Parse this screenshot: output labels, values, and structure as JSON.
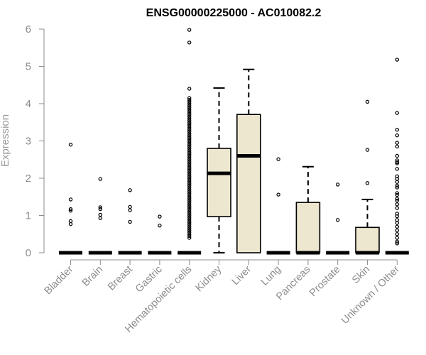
{
  "chart_data": {
    "type": "box",
    "title": "ENSG00000225000 - AC010082.2",
    "ylabel": "Expression",
    "xlabel": "",
    "ylim": [
      0,
      6
    ],
    "yticks": [
      0,
      1,
      2,
      3,
      4,
      5,
      6
    ],
    "box_fill": "#ede7cf",
    "grid": false,
    "categories": [
      "Bladder",
      "Brain",
      "Breast",
      "Gastric",
      "Hematopoietic cells",
      "Kidney",
      "Liver",
      "Lung",
      "Pancreas",
      "Prostate",
      "Skin",
      "Unknown / Other"
    ],
    "boxes": [
      {
        "name": "Bladder",
        "min": 0,
        "q1": 0,
        "median": 0,
        "q3": 0,
        "max": 0,
        "outliers": [
          2.9,
          1.43,
          1.17,
          1.13,
          0.85,
          0.77
        ]
      },
      {
        "name": "Brain",
        "min": 0,
        "q1": 0,
        "median": 0,
        "q3": 0,
        "max": 0,
        "outliers": [
          1.98,
          1.22,
          1.17,
          1.02,
          0.93
        ]
      },
      {
        "name": "Breast",
        "min": 0,
        "q1": 0,
        "median": 0,
        "q3": 0,
        "max": 0,
        "outliers": [
          1.68,
          1.23,
          1.14,
          0.83
        ]
      },
      {
        "name": "Gastric",
        "min": 0,
        "q1": 0,
        "median": 0,
        "q3": 0,
        "max": 0,
        "outliers": [
          0.97,
          0.73
        ]
      },
      {
        "name": "Hematopoietic cells",
        "min": 0,
        "q1": 0,
        "median": 0,
        "q3": 0,
        "max": 0,
        "outliers": [
          5.98,
          5.64,
          4.4,
          4.15,
          4.1,
          4.05,
          4.0,
          3.95,
          3.9,
          3.85,
          3.8,
          3.75,
          3.7,
          3.65,
          3.6,
          3.55,
          3.5,
          3.45,
          3.4,
          3.35,
          3.3,
          3.25,
          3.2,
          3.15,
          3.1,
          3.05,
          3.0,
          2.95,
          2.9,
          2.85,
          2.8,
          2.75,
          2.7,
          2.65,
          2.6,
          2.55,
          2.5,
          2.45,
          2.4,
          2.35,
          2.3,
          2.25,
          2.2,
          2.15,
          2.1,
          2.05,
          2.0,
          1.95,
          1.9,
          1.85,
          1.8,
          1.75,
          1.7,
          1.65,
          1.6,
          1.55,
          1.5,
          1.45,
          1.4,
          1.35,
          1.3,
          1.25,
          1.2,
          1.15,
          1.1,
          1.05,
          1.0,
          0.95,
          0.9,
          0.85,
          0.8,
          0.75,
          0.7,
          0.65,
          0.6,
          0.55,
          0.5,
          0.45,
          0.4
        ]
      },
      {
        "name": "Kidney",
        "min": 0,
        "q1": 0.97,
        "median": 2.13,
        "q3": 2.8,
        "max": 4.42,
        "outliers": []
      },
      {
        "name": "Liver",
        "min": 0,
        "q1": 0,
        "median": 2.6,
        "q3": 3.71,
        "max": 4.92,
        "outliers": []
      },
      {
        "name": "Lung",
        "min": 0,
        "q1": 0,
        "median": 0,
        "q3": 0,
        "max": 0,
        "outliers": [
          2.51,
          1.56
        ]
      },
      {
        "name": "Pancreas",
        "min": 0,
        "q1": 0,
        "median": 0,
        "q3": 1.35,
        "max": 2.31,
        "outliers": []
      },
      {
        "name": "Prostate",
        "min": 0,
        "q1": 0,
        "median": 0,
        "q3": 0,
        "max": 0,
        "outliers": [
          1.83,
          0.88
        ]
      },
      {
        "name": "Skin",
        "min": 0,
        "q1": 0,
        "median": 0,
        "q3": 0.68,
        "max": 1.43,
        "outliers": [
          4.05,
          2.76,
          1.87
        ]
      },
      {
        "name": "Unknown / Other",
        "min": 0,
        "q1": 0,
        "median": 0,
        "q3": 0,
        "max": 0,
        "outliers": [
          5.18,
          3.75,
          3.3,
          3.15,
          2.95,
          2.85,
          2.6,
          2.48,
          2.43,
          2.4,
          2.25,
          2.05,
          1.98,
          1.9,
          1.8,
          1.75,
          1.6,
          1.55,
          1.45,
          1.4,
          1.3,
          1.2,
          1.05,
          0.98,
          0.88,
          0.8,
          0.7,
          0.6,
          0.5,
          0.4,
          0.3,
          0.25
        ]
      }
    ]
  }
}
